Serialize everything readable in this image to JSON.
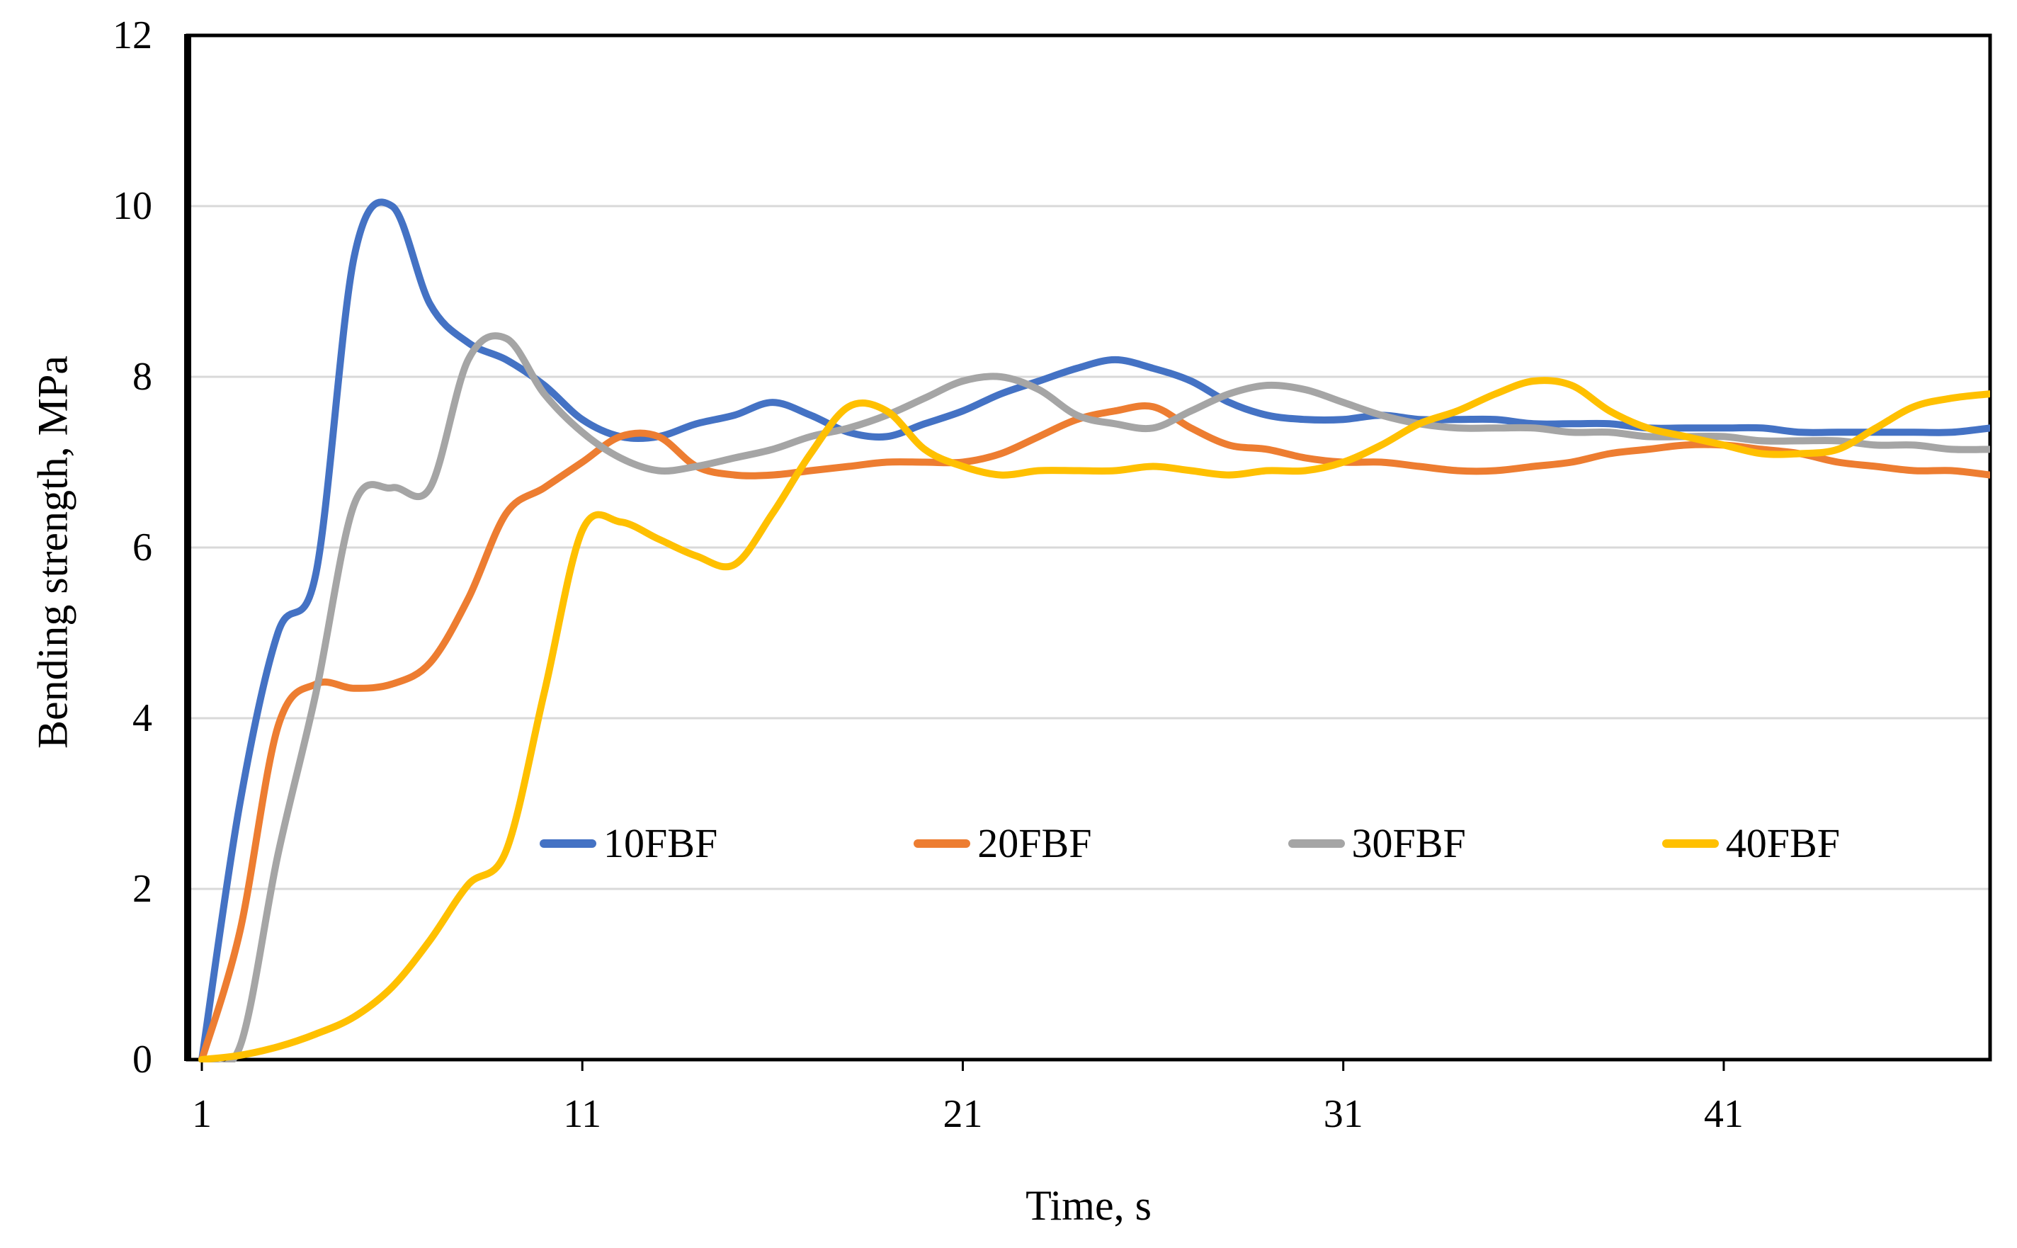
{
  "chart_data": {
    "type": "line",
    "title": "",
    "xlabel": "Time, s",
    "ylabel": "Bending strength, MPa",
    "x_start": 1,
    "x_count": 48,
    "x_tick_labels": [
      1,
      11,
      21,
      31,
      41
    ],
    "y_ticks": [
      0,
      2,
      4,
      6,
      8,
      10,
      12
    ],
    "ylim": [
      0,
      12
    ],
    "grid": "horizontal-only",
    "smoothed_lines": true,
    "legend_position": "inside-plot-lower-center",
    "series": [
      {
        "name": "10FBF",
        "color": "#4472C4",
        "values": [
          0,
          3.0,
          5.0,
          5.7,
          9.4,
          10.0,
          8.85,
          8.4,
          8.2,
          7.9,
          7.5,
          7.3,
          7.3,
          7.45,
          7.55,
          7.7,
          7.55,
          7.35,
          7.3,
          7.45,
          7.6,
          7.8,
          7.95,
          8.1,
          8.2,
          8.1,
          7.95,
          7.7,
          7.55,
          7.5,
          7.5,
          7.55,
          7.5,
          7.5,
          7.5,
          7.45,
          7.45,
          7.45,
          7.4,
          7.4,
          7.4,
          7.4,
          7.35,
          7.35,
          7.35,
          7.35,
          7.35,
          7.4
        ]
      },
      {
        "name": "20FBF",
        "color": "#ED7D31",
        "values": [
          0,
          1.5,
          3.9,
          4.4,
          4.35,
          4.4,
          4.65,
          5.4,
          6.4,
          6.7,
          7.0,
          7.3,
          7.3,
          6.95,
          6.85,
          6.85,
          6.9,
          6.95,
          7.0,
          7.0,
          7.0,
          7.1,
          7.3,
          7.5,
          7.6,
          7.65,
          7.4,
          7.2,
          7.15,
          7.05,
          7.0,
          7.0,
          6.95,
          6.9,
          6.9,
          6.95,
          7.0,
          7.1,
          7.15,
          7.2,
          7.2,
          7.15,
          7.1,
          7.0,
          6.95,
          6.9,
          6.9,
          6.85
        ]
      },
      {
        "name": "30FBF",
        "color": "#A5A5A5",
        "values": [
          0,
          0.15,
          2.4,
          4.3,
          6.5,
          6.7,
          6.7,
          8.2,
          8.45,
          7.8,
          7.35,
          7.05,
          6.9,
          6.95,
          7.05,
          7.15,
          7.3,
          7.4,
          7.55,
          7.75,
          7.95,
          8.0,
          7.85,
          7.55,
          7.45,
          7.4,
          7.6,
          7.8,
          7.9,
          7.85,
          7.7,
          7.55,
          7.45,
          7.4,
          7.4,
          7.4,
          7.35,
          7.35,
          7.3,
          7.3,
          7.3,
          7.25,
          7.25,
          7.25,
          7.2,
          7.2,
          7.15,
          7.15
        ]
      },
      {
        "name": "40FBF",
        "color": "#FFC000",
        "values": [
          0,
          0.05,
          0.15,
          0.3,
          0.5,
          0.85,
          1.4,
          2.05,
          2.45,
          4.3,
          6.2,
          6.3,
          6.1,
          5.9,
          5.8,
          6.4,
          7.1,
          7.65,
          7.6,
          7.15,
          6.95,
          6.85,
          6.9,
          6.9,
          6.9,
          6.95,
          6.9,
          6.85,
          6.9,
          6.9,
          7.0,
          7.2,
          7.45,
          7.6,
          7.8,
          7.95,
          7.9,
          7.6,
          7.4,
          7.3,
          7.2,
          7.1,
          7.1,
          7.15,
          7.4,
          7.65,
          7.75,
          7.8
        ]
      }
    ],
    "colors": {
      "axis": "#000000",
      "gridline": "#D9D9D9",
      "background": "#FFFFFF"
    }
  }
}
